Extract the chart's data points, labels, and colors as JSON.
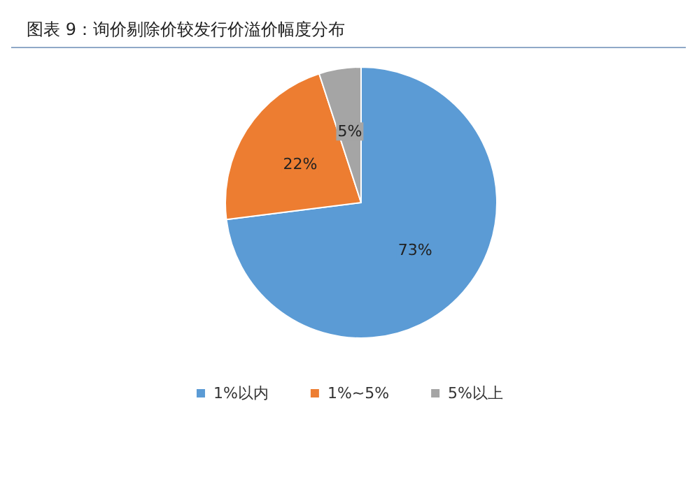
{
  "chart_data": {
    "type": "pie",
    "title": "图表 9：询价剔除价较发行价溢价幅度分布",
    "categories": [
      "1%以内",
      "1%~5%",
      "5%以上"
    ],
    "values": [
      73,
      22,
      5
    ],
    "colors": [
      "#5b9bd5",
      "#ed7d31",
      "#a5a5a5"
    ],
    "value_labels": [
      "73%",
      "22%",
      "5%"
    ],
    "legend": "bottom"
  }
}
